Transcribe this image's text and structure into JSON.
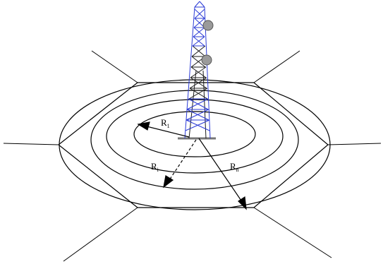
{
  "labels": {
    "r1": {
      "main": "R",
      "sub": "1"
    },
    "ri": {
      "main": "R",
      "sub": "i"
    },
    "rn": {
      "main": "R",
      "sub": "n"
    }
  },
  "colors": {
    "line": "#000000",
    "tower": "#2b3bd6",
    "tower_dark": "#1a1a1a",
    "antenna": "#8a8a8a"
  }
}
